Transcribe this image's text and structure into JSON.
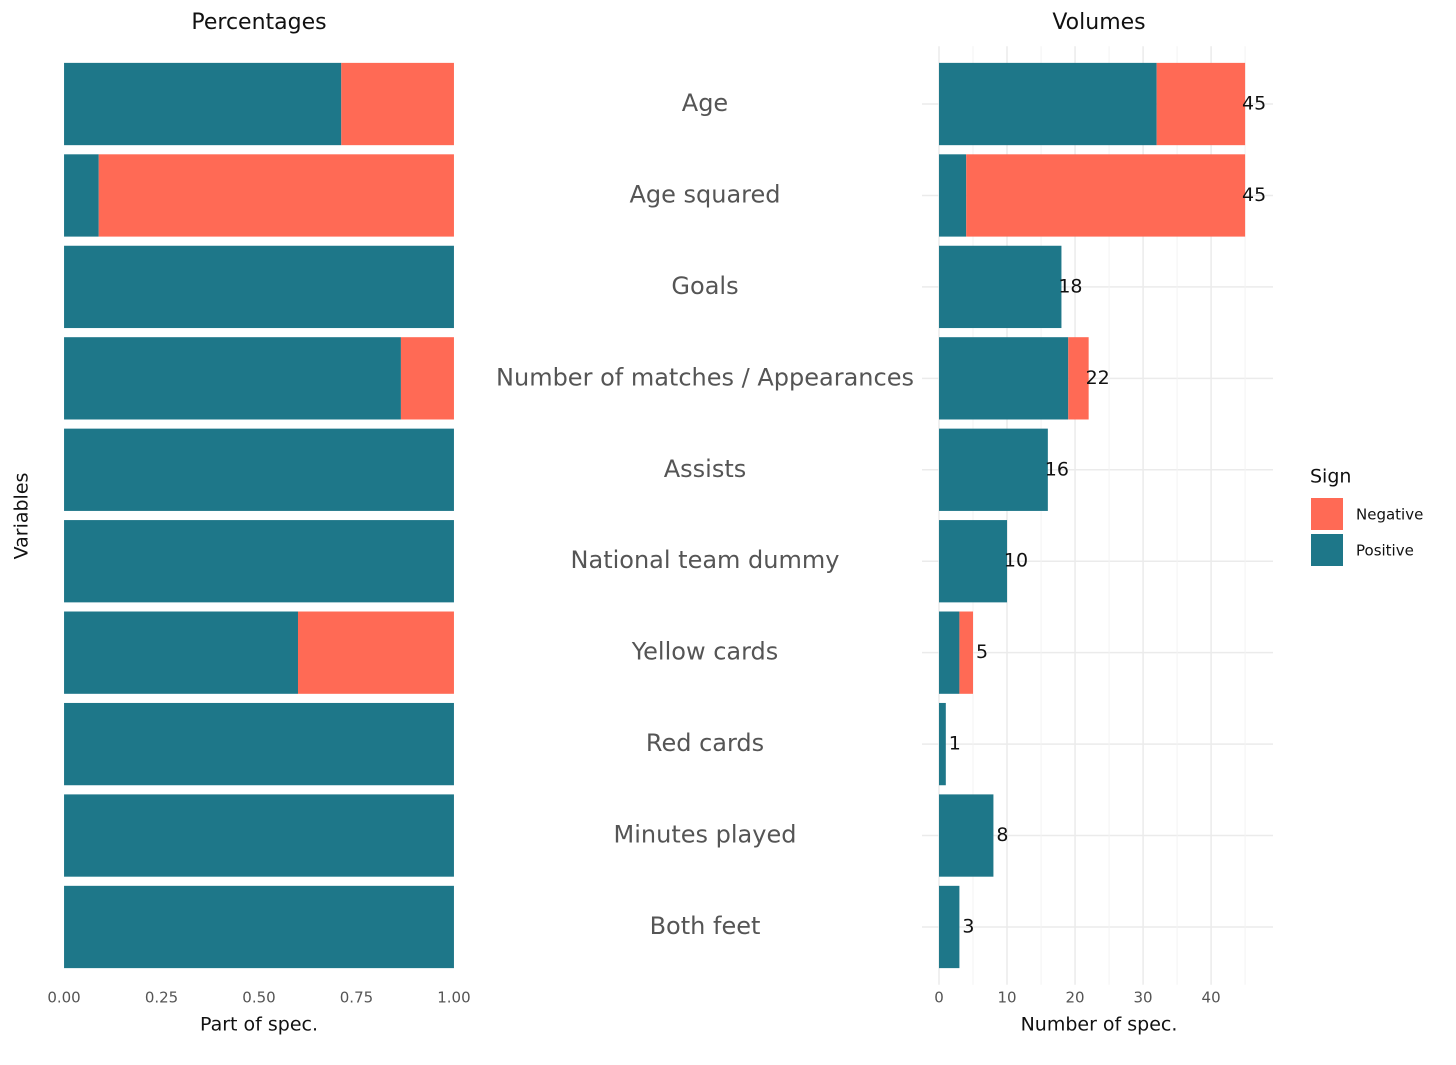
{
  "chart_data": [
    {
      "type": "stacked-barh",
      "title": "Percentages",
      "xlabel": "Part of spec.",
      "ylabel": "Variables",
      "categories": [
        "Age",
        "Age squared",
        "Goals",
        "Number of matches / Appearances",
        "Assists",
        "National team dummy",
        "Yellow cards",
        "Red cards",
        "Minutes played",
        "Both feet"
      ],
      "series": [
        {
          "name": "Positive",
          "color": "#1e7789",
          "values": [
            0.711,
            0.089,
            1,
            0.864,
            1,
            1,
            0.6,
            1,
            1,
            1
          ]
        },
        {
          "name": "Negative",
          "color": "#ff6a55",
          "values": [
            0.289,
            0.911,
            0,
            0.136,
            0,
            0,
            0.4,
            0,
            0,
            0
          ]
        }
      ],
      "xlim": [
        -0.045,
        1.045
      ],
      "xticks": [
        {
          "value": 0,
          "label": "0.00"
        },
        {
          "value": 0.25,
          "label": "0.25"
        },
        {
          "value": 0.5,
          "label": "0.50"
        },
        {
          "value": 0.75,
          "label": "0.75"
        },
        {
          "value": 1,
          "label": "1.00"
        }
      ],
      "grid": false
    },
    {
      "type": "stacked-barh",
      "title": "Volumes",
      "xlabel": "Number of spec.",
      "legend_title": "Sign",
      "series": [
        {
          "name": "Positive",
          "color": "#1e7789",
          "values": [
            32,
            4,
            18,
            19,
            16,
            10,
            3,
            1,
            8,
            3
          ]
        },
        {
          "name": "Negative",
          "color": "#ff6a55",
          "values": [
            13,
            41,
            0,
            3,
            0,
            0,
            2,
            0,
            0,
            0
          ]
        }
      ],
      "totals": [
        45,
        45,
        18,
        22,
        16,
        10,
        5,
        1,
        8,
        3
      ],
      "xlim": [
        -2.5,
        49.1
      ],
      "xticks": [
        0,
        10,
        20,
        30,
        40
      ],
      "minor_xticks": [
        5,
        15,
        25,
        35,
        45
      ],
      "grid": true,
      "legend": "right"
    }
  ]
}
